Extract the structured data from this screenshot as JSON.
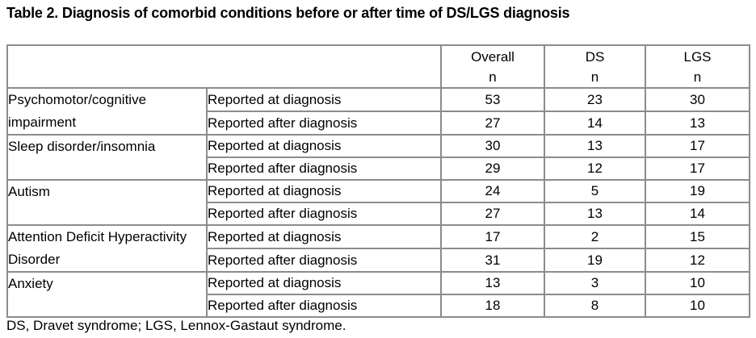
{
  "title": "Table 2. Diagnosis of comorbid conditions before or after time of DS/LGS diagnosis",
  "footnote": "DS, Dravet syndrome; LGS, Lennox-Gastaut syndrome.",
  "table": {
    "header": {
      "cols": [
        {
          "label": "Overall",
          "sub": "n"
        },
        {
          "label": "DS",
          "sub": "n"
        },
        {
          "label": "LGS",
          "sub": "n"
        }
      ]
    },
    "groups": [
      {
        "condition": "Psychomotor/cognitive impairment",
        "entries": [
          {
            "timing": "Reported at diagnosis",
            "overall": "53",
            "ds": "23",
            "lgs": "30"
          },
          {
            "timing": "Reported after diagnosis",
            "overall": "27",
            "ds": "14",
            "lgs": "13"
          }
        ]
      },
      {
        "condition": "Sleep disorder/insomnia",
        "entries": [
          {
            "timing": "Reported at diagnosis",
            "overall": "30",
            "ds": "13",
            "lgs": "17"
          },
          {
            "timing": "Reported after diagnosis",
            "overall": "29",
            "ds": "12",
            "lgs": "17"
          }
        ]
      },
      {
        "condition": "Autism",
        "entries": [
          {
            "timing": "Reported at diagnosis",
            "overall": "24",
            "ds": "5",
            "lgs": "19"
          },
          {
            "timing": "Reported after diagnosis",
            "overall": "27",
            "ds": "13",
            "lgs": "14"
          }
        ]
      },
      {
        "condition": "Attention Deficit Hyperactivity Disorder",
        "entries": [
          {
            "timing": "Reported at diagnosis",
            "overall": "17",
            "ds": "2",
            "lgs": "15"
          },
          {
            "timing": "Reported after diagnosis",
            "overall": "31",
            "ds": "19",
            "lgs": "12"
          }
        ]
      },
      {
        "condition": "Anxiety",
        "entries": [
          {
            "timing": "Reported at diagnosis",
            "overall": "13",
            "ds": "3",
            "lgs": "10"
          },
          {
            "timing": "Reported after diagnosis",
            "overall": "18",
            "ds": "8",
            "lgs": "10"
          }
        ]
      }
    ]
  }
}
